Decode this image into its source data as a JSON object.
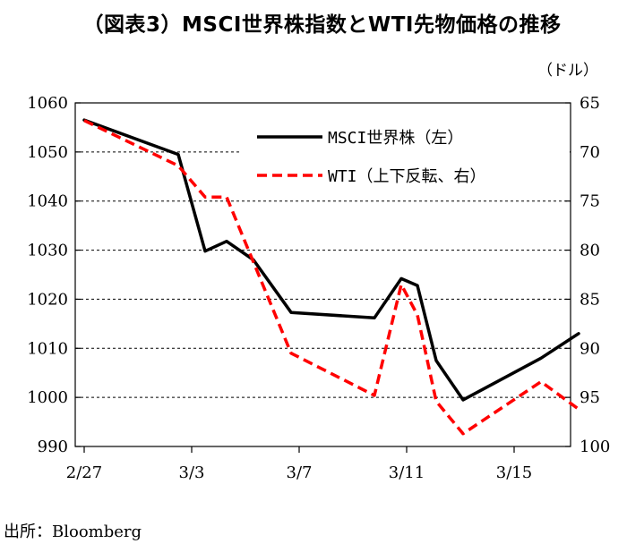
{
  "title": "（図表3）MSCI世界株指数とWTI先物価格の推移",
  "source": "出所：Bloomberg",
  "chart_data": {
    "type": "line",
    "x_tick_labels": [
      "2/27",
      "3/3",
      "3/7",
      "3/11",
      "3/15"
    ],
    "x_tick_index": [
      0,
      4,
      8,
      12,
      16
    ],
    "left_axis": {
      "ylim": [
        990,
        1060
      ],
      "ticks": [
        990,
        1000,
        1010,
        1020,
        1030,
        1040,
        1050,
        1060
      ]
    },
    "right_axis": {
      "unit": "（ドル）",
      "ylim": [
        65,
        100
      ],
      "inverted": true,
      "ticks": [
        65,
        70,
        75,
        80,
        85,
        90,
        95,
        100
      ]
    },
    "grid": "horizontal-dashed",
    "legend_placement": "top-right",
    "series": [
      {
        "name": "MSCI世界株（左）",
        "axis": "left",
        "color": "#000000",
        "style": "solid",
        "x": [
          0,
          3.5,
          4.5,
          5.3,
          6.3,
          7.7,
          10.8,
          11.8,
          12.4,
          13.1,
          14.1,
          17,
          18.4
        ],
        "values": [
          1056.5,
          1049.5,
          1029.8,
          1031.8,
          1028,
          1017.3,
          1016.2,
          1024.2,
          1022.8,
          1007.5,
          999.5,
          1008,
          1013
        ]
      },
      {
        "name": "WTI（上下反転、右）",
        "axis": "right",
        "color": "#ff0000",
        "style": "dashed",
        "x": [
          0,
          3.5,
          4.5,
          5.3,
          7.7,
          10.8,
          11.8,
          12.4,
          13.1,
          14.1,
          17,
          18.4
        ],
        "values": [
          66.8,
          71.4,
          74.6,
          74.6,
          90.5,
          94.8,
          83.5,
          86.6,
          95.4,
          98.7,
          93.4,
          96.2
        ]
      }
    ]
  }
}
